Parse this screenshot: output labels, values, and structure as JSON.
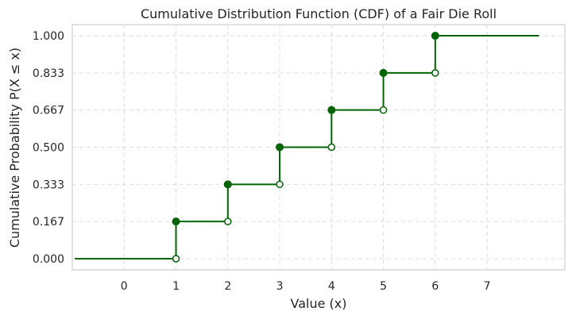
{
  "chart_data": {
    "type": "line",
    "title": "Cumulative Distribution Function (CDF) of a Fair Die Roll",
    "xlabel": "Value (x)",
    "ylabel": "Cumulative Probability P(X ≤ x)",
    "xlim": [
      -1.0,
      8.5
    ],
    "ylim": [
      -0.05,
      1.05
    ],
    "xticks": [
      0,
      1,
      2,
      3,
      4,
      5,
      6,
      7
    ],
    "xtick_labels": [
      "0",
      "1",
      "2",
      "3",
      "4",
      "5",
      "6",
      "7"
    ],
    "yticks": [
      0.0,
      0.1667,
      0.3333,
      0.5,
      0.6667,
      0.8333,
      1.0
    ],
    "ytick_labels": [
      "0.000",
      "0.167",
      "0.333",
      "0.500",
      "0.667",
      "0.833",
      "1.000"
    ],
    "grid": true,
    "line_color": "#006400",
    "steps": [
      {
        "x_start": -0.95,
        "x_end": 1,
        "y": 0.0
      },
      {
        "x_start": 1,
        "x_end": 2,
        "y": 0.1667
      },
      {
        "x_start": 2,
        "x_end": 3,
        "y": 0.3333
      },
      {
        "x_start": 3,
        "x_end": 4,
        "y": 0.5
      },
      {
        "x_start": 4,
        "x_end": 5,
        "y": 0.6667
      },
      {
        "x_start": 5,
        "x_end": 6,
        "y": 0.8333
      },
      {
        "x_start": 6,
        "x_end": 8.0,
        "y": 1.0
      }
    ],
    "closed_points": [
      {
        "x": 1,
        "y": 0.1667
      },
      {
        "x": 2,
        "y": 0.3333
      },
      {
        "x": 3,
        "y": 0.5
      },
      {
        "x": 4,
        "y": 0.6667
      },
      {
        "x": 5,
        "y": 0.8333
      },
      {
        "x": 6,
        "y": 1.0
      }
    ],
    "open_points": [
      {
        "x": 1,
        "y": 0.0
      },
      {
        "x": 2,
        "y": 0.1667
      },
      {
        "x": 3,
        "y": 0.3333
      },
      {
        "x": 4,
        "y": 0.5
      },
      {
        "x": 5,
        "y": 0.6667
      },
      {
        "x": 6,
        "y": 0.8333
      }
    ]
  }
}
